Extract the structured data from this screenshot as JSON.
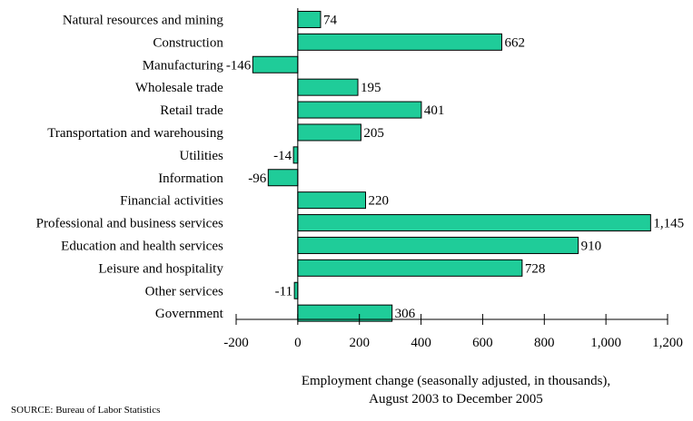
{
  "chart_data": {
    "type": "bar",
    "orientation": "horizontal",
    "categories": [
      "Natural resources and mining",
      "Construction",
      "Manufacturing",
      "Wholesale trade",
      "Retail trade",
      "Transportation and warehousing",
      "Utilities",
      "Information",
      "Financial activities",
      "Professional and business services",
      "Education and health services",
      "Leisure and hospitality",
      "Other services",
      "Government"
    ],
    "values": [
      74,
      662,
      -146,
      195,
      401,
      205,
      -14,
      -96,
      220,
      1145,
      910,
      728,
      -11,
      306
    ],
    "value_labels": [
      "74",
      "662",
      "-146",
      "195",
      "401",
      "205",
      "-14",
      "-96",
      "220",
      "1,145",
      "910",
      "728",
      "-11",
      "306"
    ],
    "xlim": [
      -200,
      1200
    ],
    "xticks": [
      -200,
      0,
      200,
      400,
      600,
      800,
      1000,
      1200
    ],
    "xtick_labels": [
      "-200",
      "0",
      "200",
      "400",
      "600",
      "800",
      "1,000",
      "1,200"
    ],
    "xlabel_line1": "Employment change (seasonally adjusted, in thousands),",
    "xlabel_line2": "August 2003 to December 2005",
    "grid": false,
    "bar_color": "#1fcc99",
    "bar_stroke": "#000000"
  },
  "source": "SOURCE:  Bureau of Labor Statistics"
}
